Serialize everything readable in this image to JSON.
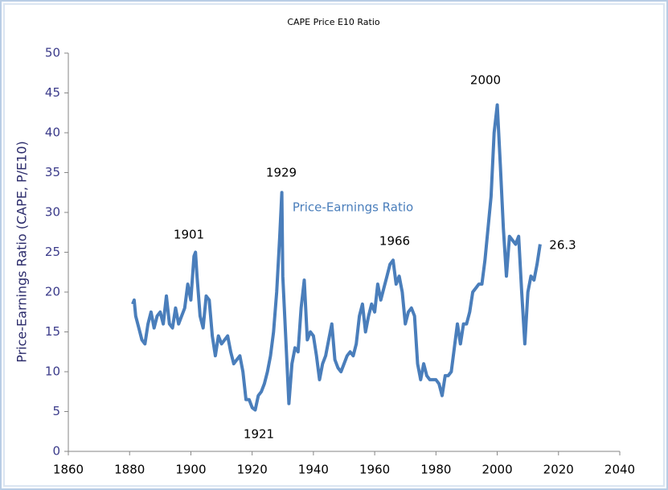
{
  "chart_data": {
    "type": "line",
    "title": "CAPE Price E10 Ratio",
    "y_label": "Price-Earnings Ratio (CAPE, P/E10)",
    "xlim": [
      1860,
      2040
    ],
    "xticks": [
      1860,
      1880,
      1900,
      1920,
      1940,
      1960,
      1980,
      2000,
      2020,
      2040
    ],
    "ylim": [
      0,
      50
    ],
    "yticks": [
      0,
      5,
      10,
      15,
      20,
      25,
      30,
      35,
      40,
      45,
      50
    ],
    "grid": false,
    "series": [
      {
        "name": "Price-Earnings Ratio",
        "color": "#4a7ebb",
        "x": [
          1881,
          1881.5,
          1882,
          1883,
          1884,
          1885,
          1886,
          1887,
          1888,
          1889,
          1890,
          1891,
          1892,
          1893,
          1894,
          1895,
          1896,
          1897,
          1898,
          1899,
          1900,
          1901,
          1901.5,
          1902,
          1903,
          1904,
          1905,
          1906,
          1907,
          1908,
          1909,
          1910,
          1911,
          1912,
          1913,
          1914,
          1915,
          1916,
          1917,
          1918,
          1919,
          1920,
          1921,
          1922,
          1923,
          1924,
          1925,
          1926,
          1927,
          1928,
          1929,
          1929.7,
          1930,
          1931,
          1932,
          1933,
          1934,
          1935,
          1936,
          1937,
          1938,
          1939,
          1940,
          1941,
          1942,
          1943,
          1944,
          1945,
          1946,
          1947,
          1948,
          1949,
          1950,
          1951,
          1952,
          1953,
          1954,
          1955,
          1956,
          1957,
          1958,
          1959,
          1960,
          1961,
          1962,
          1963,
          1964,
          1965,
          1966,
          1967,
          1968,
          1969,
          1970,
          1971,
          1972,
          1973,
          1974,
          1975,
          1976,
          1977,
          1978,
          1979,
          1980,
          1981,
          1982,
          1983,
          1984,
          1985,
          1986,
          1987,
          1988,
          1989,
          1990,
          1991,
          1992,
          1993,
          1994,
          1995,
          1996,
          1997,
          1998,
          1999,
          2000,
          2001,
          2002,
          2003,
          2004,
          2005,
          2006,
          2007,
          2008,
          2009,
          2010,
          2011,
          2012,
          2013,
          2014
        ],
        "values": [
          18.5,
          19,
          17,
          15.5,
          14,
          13.5,
          16,
          17.5,
          15.5,
          17,
          17.5,
          16,
          19.5,
          16,
          15.5,
          18,
          16,
          17,
          18,
          21,
          19,
          24.5,
          25,
          22,
          17,
          15.5,
          19.5,
          19,
          14.5,
          12,
          14.5,
          13.5,
          14,
          14.5,
          12.5,
          11,
          11.5,
          12,
          10,
          6.5,
          6.5,
          5.5,
          5.2,
          7,
          7.5,
          8.5,
          10,
          12,
          15,
          20,
          27,
          32.5,
          22,
          14,
          6,
          11,
          13,
          12.5,
          18,
          21.5,
          14,
          15,
          14.5,
          12,
          9,
          11,
          12,
          14,
          16,
          11.5,
          10.5,
          10,
          11,
          12,
          12.5,
          12,
          13.5,
          17,
          18.5,
          15,
          17,
          18.5,
          17.5,
          21,
          19,
          20.5,
          22,
          23.5,
          24,
          21,
          22,
          20,
          16,
          17.5,
          18,
          17,
          11,
          9,
          11,
          9.5,
          9,
          9,
          9,
          8.5,
          7,
          9.5,
          9.5,
          10,
          13,
          16,
          13.5,
          16,
          16,
          17.5,
          20,
          20.5,
          21,
          21,
          24,
          28,
          32,
          40,
          43.5,
          36,
          28,
          22,
          27,
          26.5,
          26,
          27,
          20,
          13.5,
          20,
          22,
          21.5,
          23.5,
          26
        ]
      }
    ],
    "annotations": [
      "1901",
      "1929",
      "1921",
      "1966",
      "2000",
      "26.3"
    ]
  }
}
